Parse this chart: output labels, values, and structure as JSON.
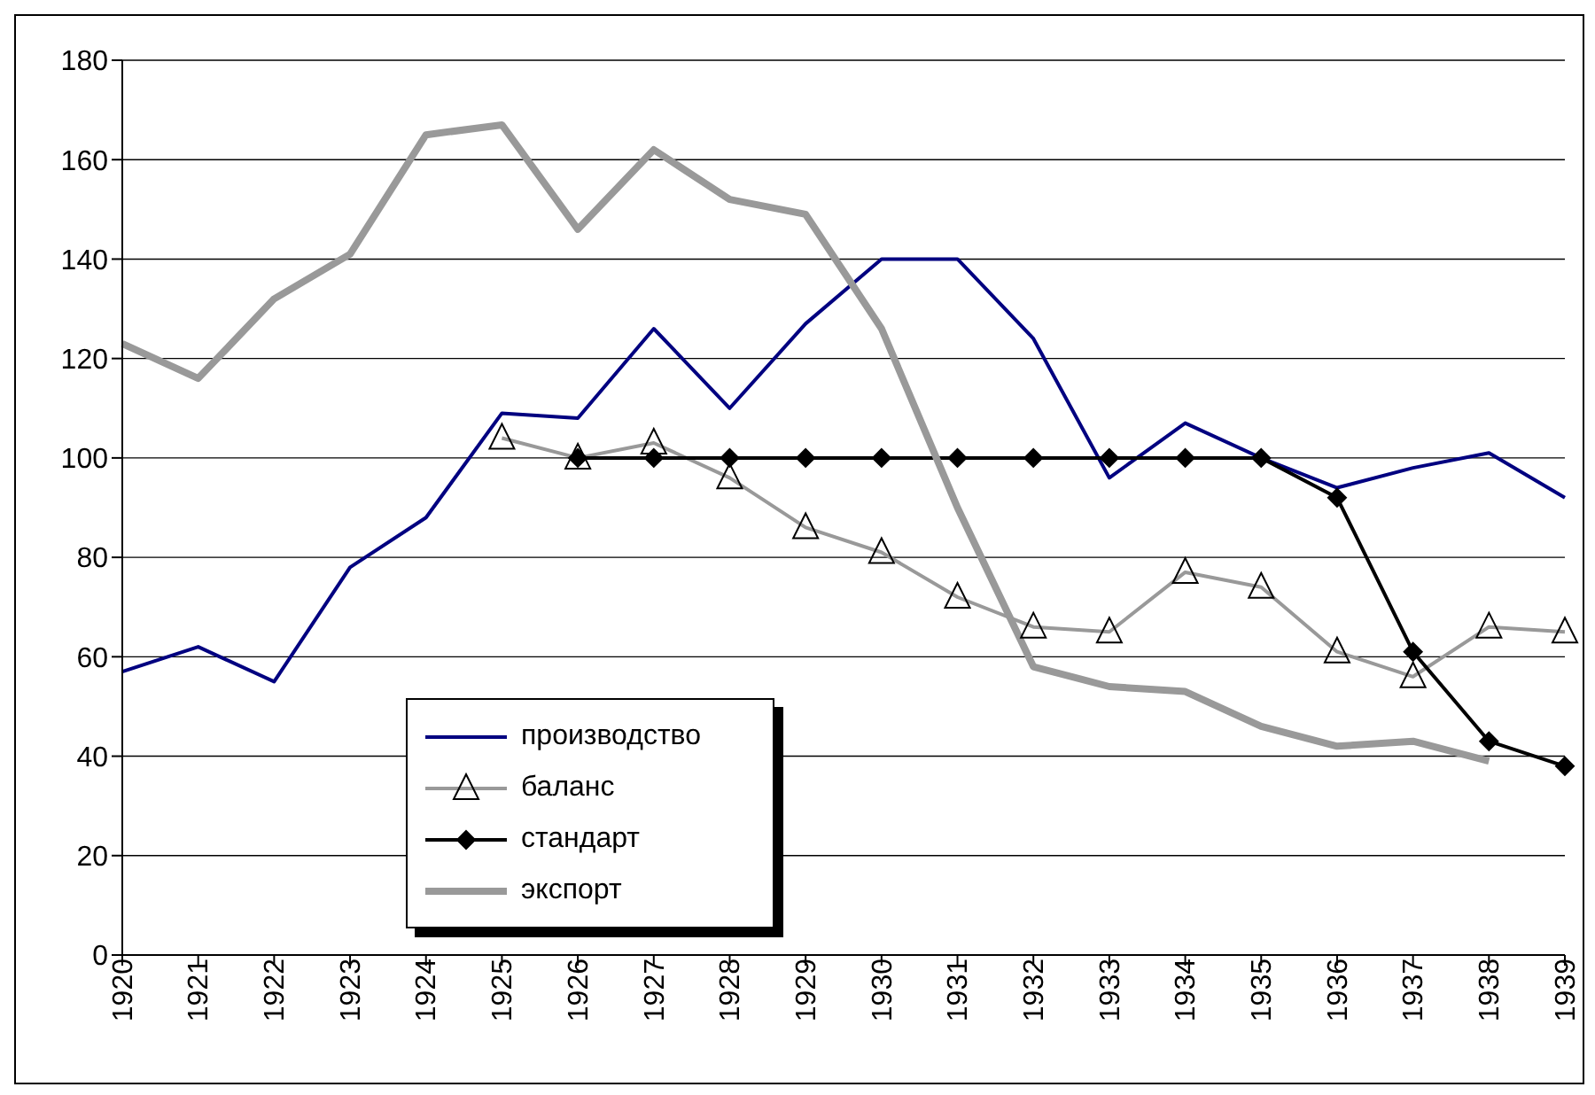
{
  "chart_data": {
    "type": "line",
    "categories": [
      "1920",
      "1921",
      "1922",
      "1923",
      "1924",
      "1925",
      "1926",
      "1927",
      "1928",
      "1929",
      "1930",
      "1931",
      "1932",
      "1933",
      "1934",
      "1935",
      "1936",
      "1937",
      "1938",
      "1939"
    ],
    "ylim": [
      0,
      180
    ],
    "yticks": [
      0,
      20,
      40,
      60,
      80,
      100,
      120,
      140,
      160,
      180
    ],
    "grid": "y",
    "legend": "bottom left",
    "series": [
      {
        "name": "производство",
        "color": "#000080",
        "marker": "none",
        "values": [
          57,
          62,
          55,
          78,
          88,
          109,
          108,
          126,
          110,
          127,
          140,
          140,
          124,
          96,
          107,
          100,
          94,
          98,
          101,
          92
        ]
      },
      {
        "name": "баланс",
        "color": "#999999",
        "marker": "triangle",
        "values": [
          null,
          null,
          null,
          null,
          null,
          104,
          100,
          103,
          96,
          86,
          81,
          72,
          66,
          65,
          77,
          74,
          61,
          56,
          66,
          65
        ]
      },
      {
        "name": "стандарт",
        "color": "#000000",
        "marker": "diamond",
        "values": [
          null,
          null,
          null,
          null,
          null,
          null,
          100,
          100,
          100,
          100,
          100,
          100,
          100,
          100,
          100,
          100,
          92,
          61,
          43,
          38
        ]
      },
      {
        "name": "экспорт",
        "color": "#999999",
        "marker": "none",
        "values": [
          123,
          116,
          132,
          141,
          165,
          167,
          146,
          162,
          152,
          149,
          126,
          90,
          58,
          54,
          53,
          46,
          42,
          43,
          39,
          null
        ]
      }
    ]
  }
}
